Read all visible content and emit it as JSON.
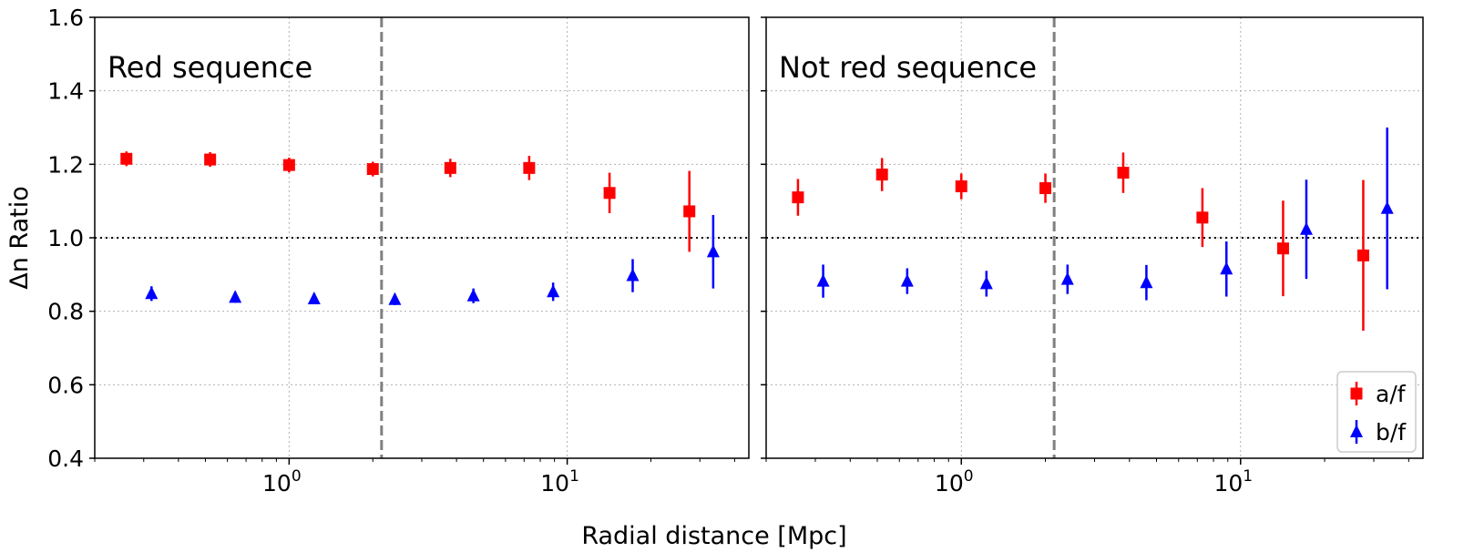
{
  "chart_data": {
    "type": "scatter",
    "xlabel": "Radial distance [Mpc]",
    "ylabel": "Δn Ratio",
    "xscale": "log",
    "xlim": [
      0.2,
      45
    ],
    "ylim": [
      0.4,
      1.6
    ],
    "yticks": [
      "0.4",
      "0.6",
      "0.8",
      "1.0",
      "1.2",
      "1.4",
      "1.6"
    ],
    "xticks": [
      {
        "base": "10",
        "exp": "0",
        "value": 1
      },
      {
        "base": "10",
        "exp": "1",
        "value": 10
      }
    ],
    "grid": true,
    "reference_line_y": 1.0,
    "vertical_line_x": 2.15,
    "legend": {
      "position": "lower-right",
      "entries": [
        {
          "label": "a/f",
          "marker": "square",
          "color": "#ff0000"
        },
        {
          "label": "b/f",
          "marker": "triangle",
          "color": "#0000ff"
        }
      ]
    },
    "panels": [
      {
        "title": "Red sequence",
        "series": [
          {
            "name": "a/f",
            "color": "#ff0000",
            "marker": "square",
            "x": [
              0.26,
              0.52,
              1.0,
              2.0,
              3.8,
              7.3,
              14.2,
              27.5
            ],
            "y": [
              1.215,
              1.213,
              1.198,
              1.187,
              1.19,
              1.19,
              1.122,
              1.072
            ],
            "yerr": [
              0.02,
              0.02,
              0.02,
              0.02,
              0.025,
              0.033,
              0.055,
              0.11
            ]
          },
          {
            "name": "b/f",
            "color": "#0000ff",
            "marker": "triangle",
            "x": [
              0.32,
              0.64,
              1.23,
              2.4,
              4.6,
              8.9,
              17.2,
              33.5
            ],
            "y": [
              0.848,
              0.838,
              0.834,
              0.832,
              0.842,
              0.853,
              0.897,
              0.962
            ],
            "yerr": [
              0.02,
              0.015,
              0.015,
              0.015,
              0.02,
              0.025,
              0.045,
              0.1
            ]
          }
        ]
      },
      {
        "title": "Not red sequence",
        "series": [
          {
            "name": "a/f",
            "color": "#ff0000",
            "marker": "square",
            "x": [
              0.26,
              0.52,
              1.0,
              2.0,
              3.8,
              7.3,
              14.2,
              27.5
            ],
            "y": [
              1.11,
              1.172,
              1.14,
              1.135,
              1.177,
              1.055,
              0.971,
              0.952
            ],
            "yerr": [
              0.05,
              0.045,
              0.035,
              0.04,
              0.055,
              0.08,
              0.13,
              0.205
            ]
          },
          {
            "name": "b/f",
            "color": "#0000ff",
            "marker": "triangle",
            "x": [
              0.32,
              0.64,
              1.23,
              2.4,
              4.6,
              8.9,
              17.2,
              33.5
            ],
            "y": [
              0.882,
              0.882,
              0.875,
              0.887,
              0.878,
              0.915,
              1.023,
              1.08
            ],
            "yerr": [
              0.045,
              0.035,
              0.035,
              0.04,
              0.048,
              0.075,
              0.135,
              0.22
            ]
          }
        ]
      }
    ]
  }
}
